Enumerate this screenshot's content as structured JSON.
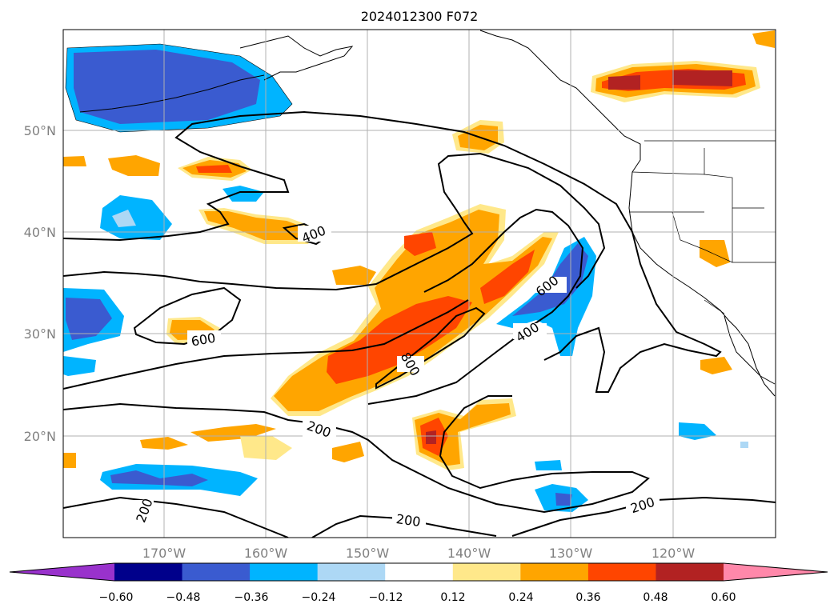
{
  "title": "2024012300 F072",
  "axes": {
    "lat_ticks": [
      "50°N",
      "40°N",
      "30°N",
      "20°N"
    ],
    "lon_ticks": [
      "170°W",
      "160°W",
      "150°W",
      "140°W",
      "130°W",
      "120°W"
    ],
    "grid": true
  },
  "contours": {
    "labels": [
      "400",
      "600",
      "600",
      "400",
      "800",
      "200",
      "200",
      "200",
      "200"
    ]
  },
  "colorbar": {
    "ticks": [
      "−0.60",
      "−0.48",
      "−0.36",
      "−0.24",
      "−0.12",
      "0.12",
      "0.24",
      "0.36",
      "0.48",
      "0.60"
    ],
    "colors": [
      "#9932cc",
      "#00008b",
      "#3a5bd0",
      "#00b4ff",
      "#add8f5",
      "#ffffff",
      "#ffe88a",
      "#ffa500",
      "#ff4500",
      "#b22222",
      "#ff88aa"
    ],
    "extend": "both"
  }
}
